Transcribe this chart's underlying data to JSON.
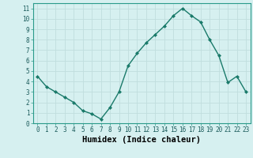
{
  "x": [
    0,
    1,
    2,
    3,
    4,
    5,
    6,
    7,
    8,
    9,
    10,
    11,
    12,
    13,
    14,
    15,
    16,
    17,
    18,
    19,
    20,
    21,
    22,
    23
  ],
  "y": [
    4.5,
    3.5,
    3.0,
    2.5,
    2.0,
    1.2,
    0.9,
    0.4,
    1.5,
    3.0,
    5.5,
    6.7,
    7.7,
    8.5,
    9.3,
    10.3,
    11.0,
    10.3,
    9.7,
    8.0,
    6.5,
    3.9,
    4.5,
    3.0
  ],
  "line_color": "#1a7a6a",
  "marker": "D",
  "marker_size": 2,
  "bg_color": "#d6f0f0",
  "grid_color": "#c0dede",
  "xlabel": "Humidex (Indice chaleur)",
  "xlim": [
    -0.5,
    23.5
  ],
  "ylim": [
    0,
    11.5
  ],
  "yticks": [
    0,
    1,
    2,
    3,
    4,
    5,
    6,
    7,
    8,
    9,
    10,
    11
  ],
  "xticks": [
    0,
    1,
    2,
    3,
    4,
    5,
    6,
    7,
    8,
    9,
    10,
    11,
    12,
    13,
    14,
    15,
    16,
    17,
    18,
    19,
    20,
    21,
    22,
    23
  ],
  "tick_fontsize": 5.5,
  "xlabel_fontsize": 7.5,
  "line_width": 1.0,
  "spine_color": "#2a9a8a"
}
